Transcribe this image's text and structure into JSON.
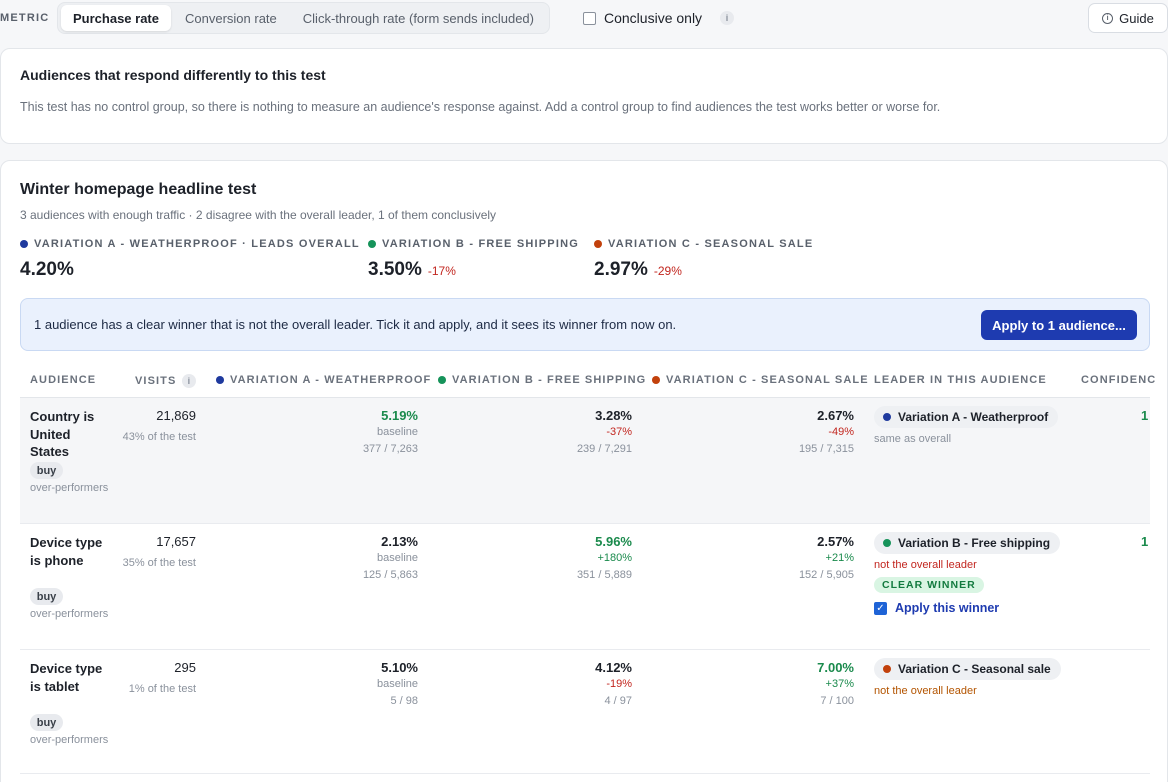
{
  "toolbar": {
    "metric_label": "METRIC",
    "metrics": [
      "Purchase rate",
      "Conversion rate",
      "Click-through rate (form sends included)"
    ],
    "conclusive_label": "Conclusive only",
    "info": "i",
    "guide_label": "Guide"
  },
  "audiences_card": {
    "title": "Audiences that respond differently to this test",
    "body": "This test has no control group, so there is nothing to measure an audience's response against. Add a control group to find audiences the test works better or worse for."
  },
  "test": {
    "title": "Winter homepage headline test",
    "subtitle": "3 audiences with enough traffic · 2 disagree with the overall leader, 1 of them conclusively",
    "variations": [
      {
        "label": "VARIATION A - WEATHERPROOF · LEADS OVERALL",
        "value": "4.20%",
        "delta": "",
        "color": "#1f3a9e"
      },
      {
        "label": "VARIATION B - FREE SHIPPING",
        "value": "3.50%",
        "delta": "-17%",
        "color": "#16935a"
      },
      {
        "label": "VARIATION C - SEASONAL SALE",
        "value": "2.97%",
        "delta": "-29%",
        "color": "#c2410c"
      }
    ],
    "banner_text": "1 audience has a clear winner that is not the overall leader. Tick it and apply, and it sees its winner from now on.",
    "apply_label": "Apply to 1 audience..."
  },
  "table": {
    "headers": {
      "audience": "AUDIENCE",
      "visits": "VISITS",
      "var_a": "VARIATION A - WEATHERPROOF",
      "var_b": "VARIATION B - FREE SHIPPING",
      "var_c": "VARIATION C - SEASONAL SALE",
      "leader": "LEADER IN THIS AUDIENCE",
      "confidence": "CONFIDENC"
    },
    "rows": [
      {
        "name": "Country is United States",
        "chip": "buy",
        "tag": "over-performers",
        "visits": "21,869",
        "visits_sub": "43% of the test",
        "a": {
          "pct": "5.19%",
          "sub": "baseline",
          "frac": "377 / 7,263"
        },
        "b": {
          "pct": "3.28%",
          "sub": "-37%",
          "frac": "239 / 7,291"
        },
        "c": {
          "pct": "2.67%",
          "sub": "-49%",
          "frac": "195 / 7,315"
        },
        "leader": "Variation A - Weatherproof",
        "leader_note": "same as overall",
        "confidence": "1"
      },
      {
        "name": "Device type is phone",
        "chip": "buy",
        "tag": "over-performers",
        "visits": "17,657",
        "visits_sub": "35% of the test",
        "a": {
          "pct": "2.13%",
          "sub": "baseline",
          "frac": "125 / 5,863"
        },
        "b": {
          "pct": "5.96%",
          "sub": "+180%",
          "frac": "351 / 5,889"
        },
        "c": {
          "pct": "2.57%",
          "sub": "+21%",
          "frac": "152 / 5,905"
        },
        "leader": "Variation B - Free shipping",
        "leader_note": "not the overall leader",
        "badge": "CLEAR WINNER",
        "apply_winner": "Apply this winner",
        "confidence": "1"
      },
      {
        "name": "Device type is tablet",
        "chip": "buy",
        "tag": "over-performers",
        "visits": "295",
        "visits_sub": "1% of the test",
        "a": {
          "pct": "5.10%",
          "sub": "baseline",
          "frac": "5 / 98"
        },
        "b": {
          "pct": "4.12%",
          "sub": "-19%",
          "frac": "4 / 97"
        },
        "c": {
          "pct": "7.00%",
          "sub": "+37%",
          "frac": "7 / 100"
        },
        "leader": "Variation C - Seasonal sale",
        "leader_note": "not the overall leader",
        "confidence": ""
      }
    ]
  }
}
